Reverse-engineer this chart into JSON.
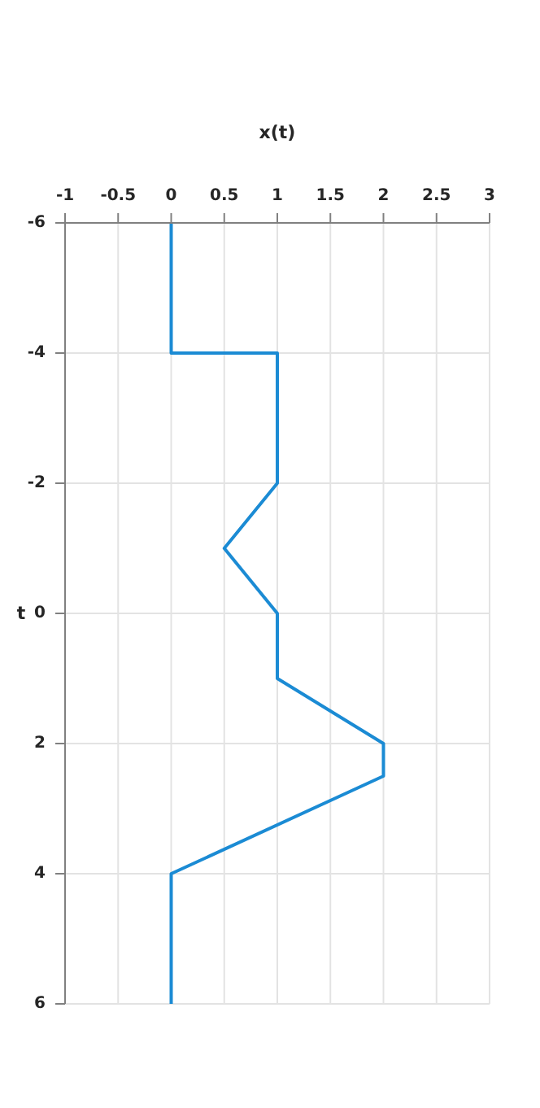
{
  "chart_data": {
    "type": "line",
    "xlabel": "x(t)",
    "ylabel": "t",
    "x": [
      0,
      0,
      1,
      1,
      0.5,
      1,
      1,
      2,
      2,
      0,
      0
    ],
    "series": [
      {
        "color": "#1b8bd4",
        "values": [
          -6,
          -4,
          -4,
          -2,
          -1,
          0,
          1,
          2,
          2.5,
          4,
          6
        ]
      }
    ],
    "xlim": [
      -1,
      3
    ],
    "xticks": [
      -1,
      -0.5,
      0,
      0.5,
      1,
      1.5,
      2,
      2.5,
      3
    ],
    "ylim": [
      6,
      -6
    ],
    "yticks": [
      -6,
      -4,
      -2,
      0,
      2,
      4,
      6
    ],
    "grid": true,
    "legend": false,
    "marker": "none",
    "line_style": "solid"
  }
}
